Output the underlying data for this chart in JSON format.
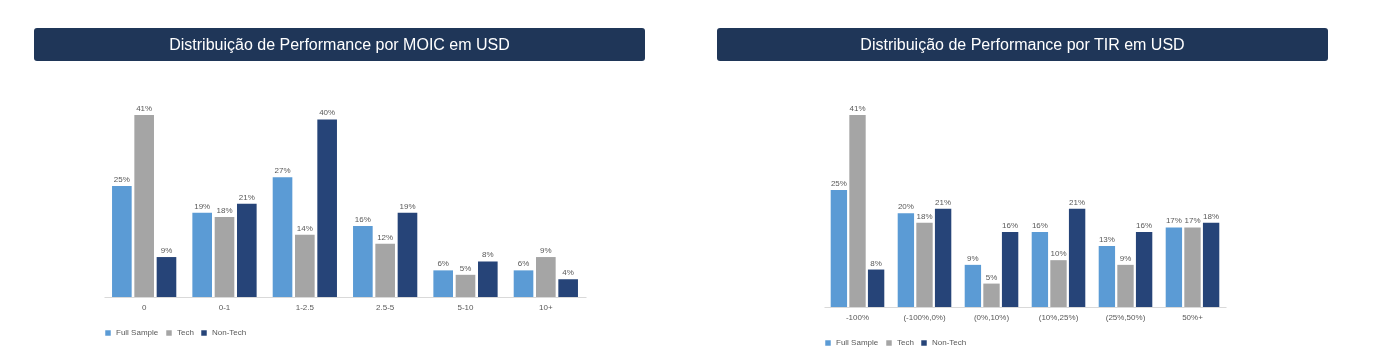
{
  "chart_data": [
    {
      "type": "bar",
      "title": "Distribuição de Performance por MOIC em USD",
      "categories": [
        "0",
        "0-1",
        "1-2.5",
        "2.5-5",
        "5-10",
        "10+"
      ],
      "legend": "bottom",
      "series": [
        {
          "name": "Full Sample",
          "color": "#5b9bd5",
          "values": [
            25,
            19,
            27,
            16,
            6,
            6
          ],
          "value_labels": [
            "25%",
            "19%",
            "27%",
            "16%",
            "6%",
            "6%"
          ]
        },
        {
          "name": "Tech",
          "color": "#a5a5a5",
          "values": [
            41,
            18,
            14,
            12,
            5,
            9
          ],
          "value_labels": [
            "41%",
            "18%",
            "14%",
            "12%",
            "5%",
            "9%"
          ]
        },
        {
          "name": "Non-Tech",
          "color": "#264478",
          "values": [
            9,
            21,
            40,
            19,
            8,
            4
          ],
          "value_labels": [
            "9%",
            "21%",
            "40%",
            "19%",
            "8%",
            "4%"
          ]
        }
      ]
    },
    {
      "type": "bar",
      "title": "Distribuição de Performance por TIR em USD",
      "categories": [
        "-100%",
        "(-100%,0%)",
        "(0%,10%)",
        "(10%,25%)",
        "(25%,50%)",
        "50%+"
      ],
      "legend": "bottom",
      "series": [
        {
          "name": "Full Sample",
          "color": "#5b9bd5",
          "values": [
            25,
            20,
            9,
            16,
            13,
            17
          ],
          "value_labels": [
            "25%",
            "20%",
            "9%",
            "16%",
            "13%",
            "17%"
          ]
        },
        {
          "name": "Tech",
          "color": "#a5a5a5",
          "values": [
            41,
            18,
            5,
            10,
            9,
            17
          ],
          "value_labels": [
            "41%",
            "18%",
            "5%",
            "10%",
            "9%",
            "17%"
          ]
        },
        {
          "name": "Non-Tech",
          "color": "#264478",
          "values": [
            8,
            21,
            16,
            21,
            16,
            18
          ],
          "value_labels": [
            "8%",
            "21%",
            "16%",
            "21%",
            "16%",
            "18%"
          ]
        }
      ]
    }
  ]
}
